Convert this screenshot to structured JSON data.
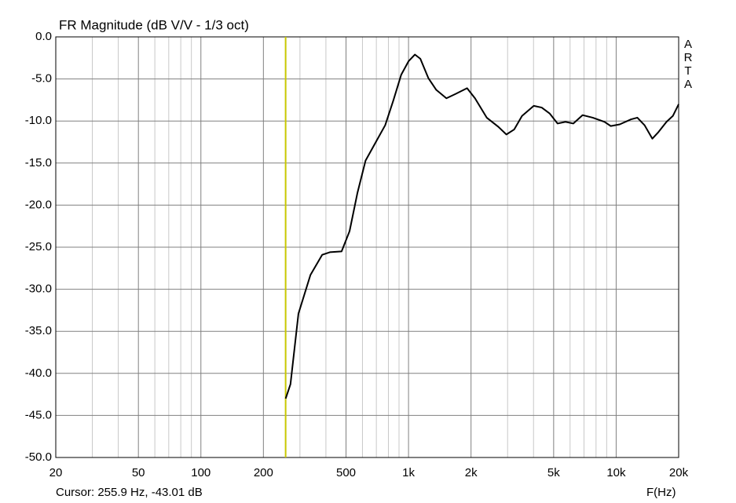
{
  "chart_data": {
    "type": "line",
    "title": "FR Magnitude (dB V/V - 1/3 oct)",
    "x_label": "F(Hz)",
    "watermark": "ARTA",
    "log_x": true,
    "grid": true,
    "xlim": [
      20,
      20000
    ],
    "xticks": [
      20,
      50,
      100,
      200,
      500,
      {
        "value": 1000,
        "label": "1k"
      },
      {
        "value": 2000,
        "label": "2k"
      },
      {
        "value": 5000,
        "label": "5k"
      },
      {
        "value": 10000,
        "label": "10k"
      },
      {
        "value": 20000,
        "label": "20k"
      }
    ],
    "x_minor_grid": [
      30,
      40,
      60,
      70,
      80,
      90,
      300,
      400,
      600,
      700,
      800,
      900,
      3000,
      4000,
      6000,
      7000,
      8000,
      9000
    ],
    "ylim": [
      -50,
      0
    ],
    "yticks": [
      {
        "value": -50,
        "label": "-50.0"
      },
      {
        "value": -45,
        "label": "-45.0"
      },
      {
        "value": -40,
        "label": "-40.0"
      },
      {
        "value": -35,
        "label": "-35.0"
      },
      {
        "value": -30,
        "label": "-30.0"
      },
      {
        "value": -25,
        "label": "-25.0"
      },
      {
        "value": -20,
        "label": "-20.0"
      },
      {
        "value": -15,
        "label": "-15.0"
      },
      {
        "value": -10,
        "label": "-10.0"
      },
      {
        "value": -5,
        "label": "-5.0"
      },
      {
        "value": 0,
        "label": "0.0"
      }
    ],
    "cursor": {
      "x": 255.9,
      "color": "#c8c800",
      "label": "Cursor: 255.9 Hz, -43.01 dB"
    },
    "series": [
      {
        "color": "#000000",
        "x": [
          256,
          270,
          295,
          337,
          384,
          418,
          476,
          520,
          568,
          621,
          707,
          772,
          844,
          922,
          1000,
          1073,
          1140,
          1246,
          1360,
          1522,
          1680,
          1914,
          2090,
          2380,
          2710,
          2960,
          3230,
          3520,
          4010,
          4380,
          4780,
          5220,
          5700,
          6220,
          6890,
          7710,
          8790,
          9420,
          10400,
          11800,
          12650,
          13700,
          14940,
          16000,
          17480,
          18750,
          20000
        ],
        "values": [
          -43.0,
          -41.3,
          -32.9,
          -28.3,
          -25.9,
          -25.6,
          -25.5,
          -23.1,
          -18.5,
          -14.7,
          -12.2,
          -10.5,
          -7.6,
          -4.5,
          -2.9,
          -2.1,
          -2.6,
          -4.9,
          -6.3,
          -7.3,
          -6.8,
          -6.1,
          -7.3,
          -9.6,
          -10.7,
          -11.6,
          -11.0,
          -9.4,
          -8.2,
          -8.4,
          -9.1,
          -10.3,
          -10.1,
          -10.3,
          -9.3,
          -9.6,
          -10.1,
          -10.6,
          -10.4,
          -9.8,
          -9.6,
          -10.5,
          -12.1,
          -11.3,
          -10.1,
          -9.4,
          -8.0
        ]
      }
    ]
  }
}
